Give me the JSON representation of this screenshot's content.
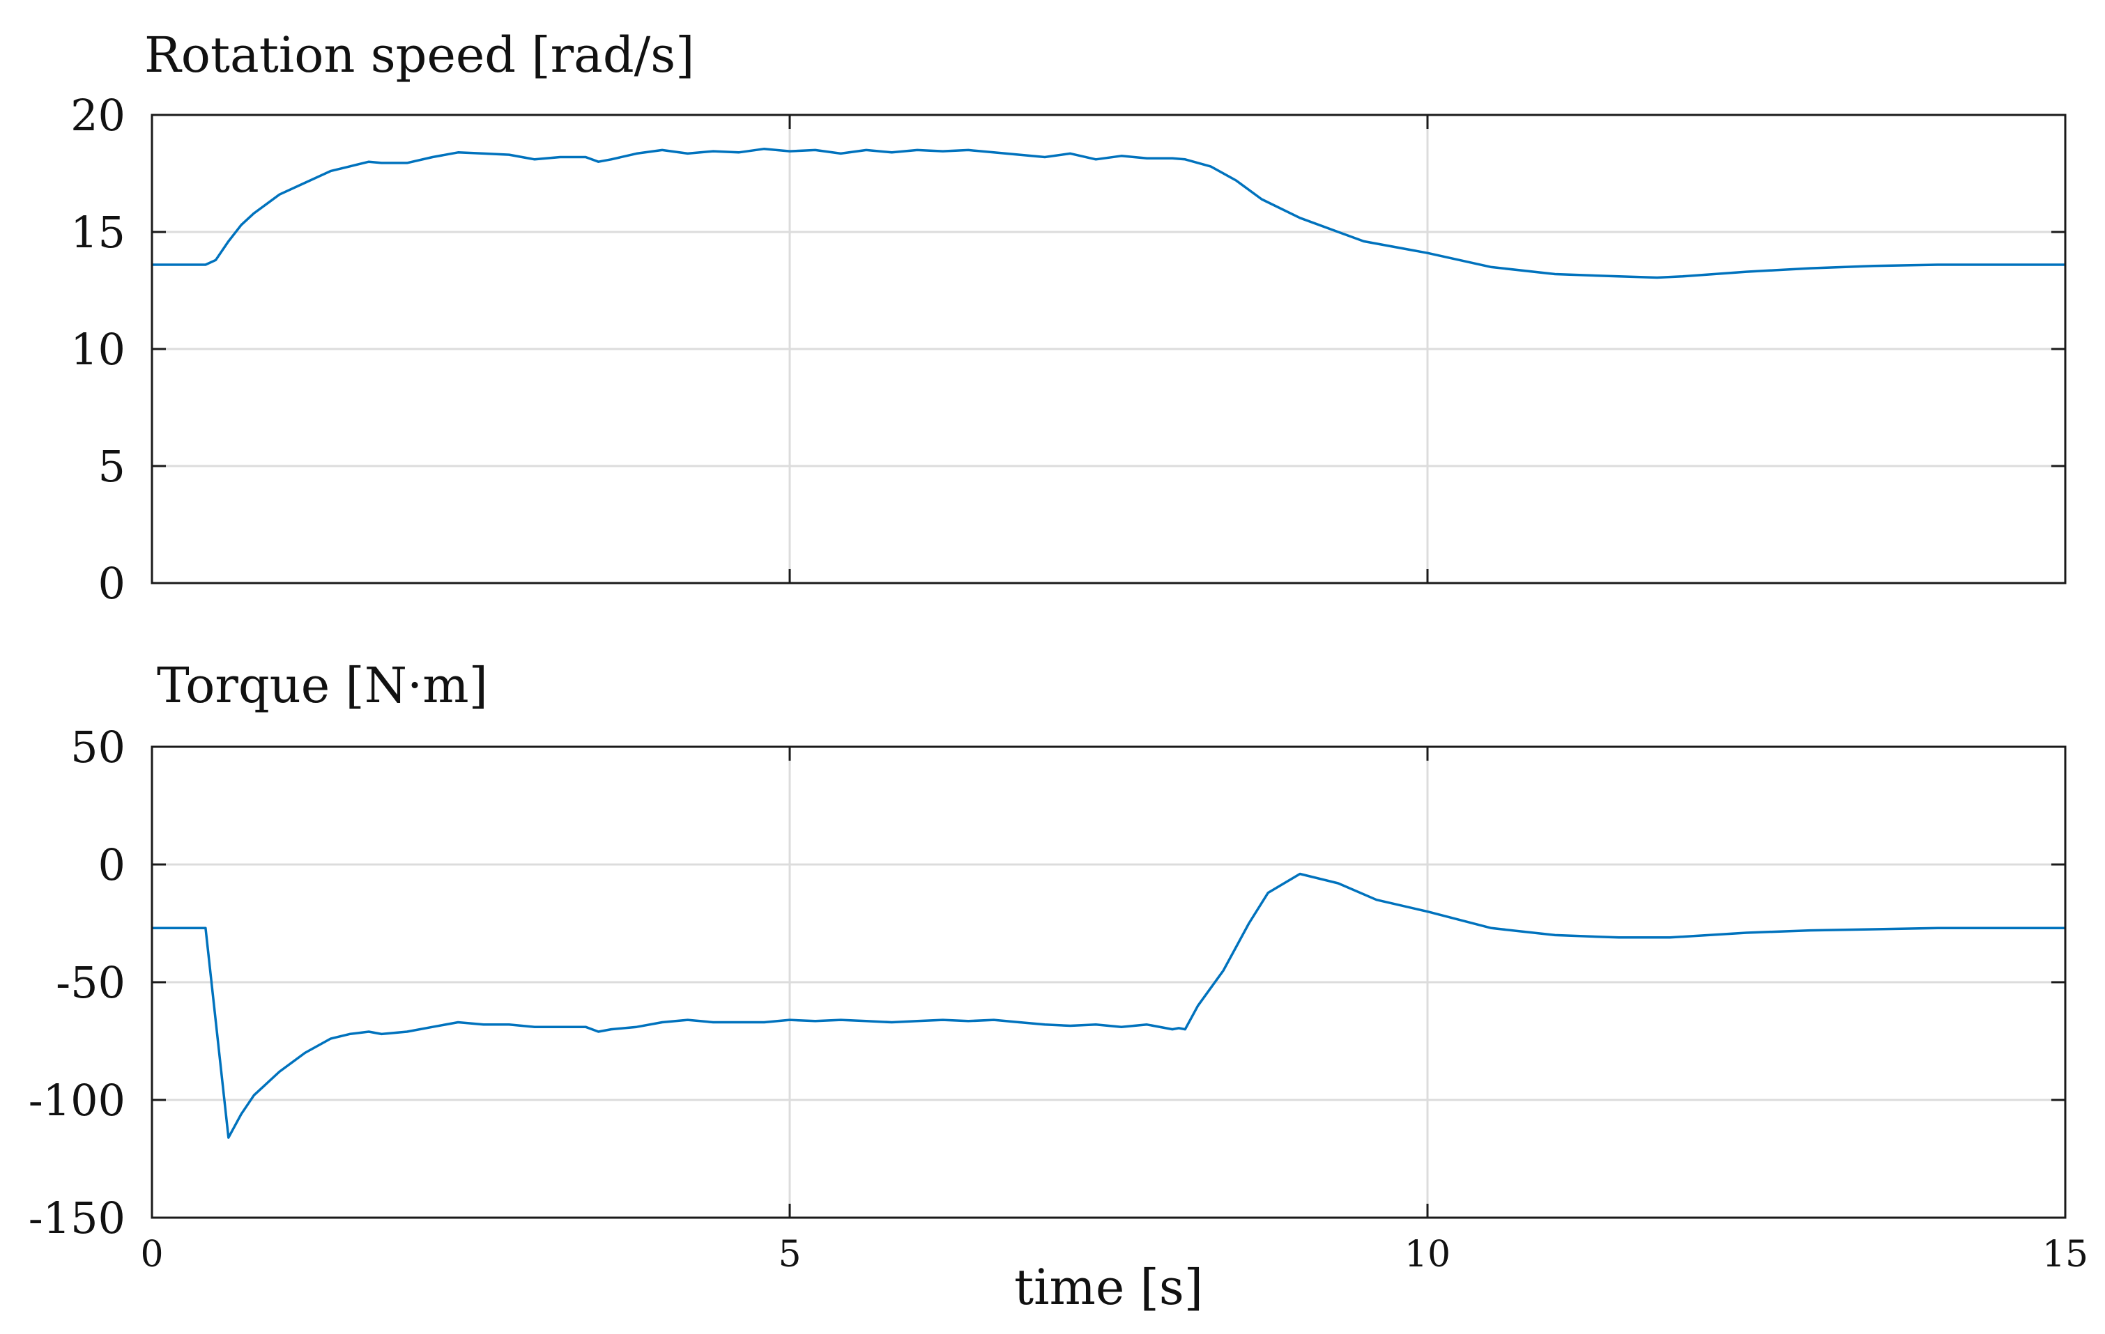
{
  "chart_data": [
    {
      "type": "line",
      "title": "Rotation speed [rad/s]",
      "xlabel": "",
      "ylabel": "",
      "xlim": [
        0,
        15
      ],
      "ylim": [
        0,
        20
      ],
      "xticks": [
        0,
        5,
        10,
        15
      ],
      "yticks": [
        0,
        5,
        10,
        15,
        20
      ],
      "x_tick_labels": [
        "",
        "",
        "",
        ""
      ],
      "y_tick_labels": [
        "0",
        "5",
        "10",
        "15",
        "20"
      ],
      "grid": true,
      "line_color": "#0072BD",
      "series": [
        {
          "x": [
            0,
            0.25,
            0.42,
            0.5,
            0.6,
            0.7,
            0.8,
            1.0,
            1.2,
            1.4,
            1.55,
            1.7,
            1.8,
            2.0,
            2.2,
            2.4,
            2.6,
            2.8,
            3.0,
            3.2,
            3.4,
            3.5,
            3.6,
            3.8,
            4.0,
            4.2,
            4.4,
            4.6,
            4.8,
            5.0,
            5.2,
            5.4,
            5.6,
            5.8,
            6.0,
            6.2,
            6.4,
            6.6,
            6.8,
            7.0,
            7.2,
            7.4,
            7.6,
            7.8,
            8.0,
            8.1,
            8.3,
            8.5,
            8.7,
            9.0,
            9.3,
            9.5,
            10.0,
            10.5,
            11.0,
            11.5,
            11.8,
            12.0,
            12.5,
            13.0,
            13.5,
            14.0,
            14.5,
            15.0
          ],
          "y": [
            13.6,
            13.6,
            13.6,
            13.8,
            14.6,
            15.3,
            15.8,
            16.6,
            17.1,
            17.6,
            17.8,
            18.0,
            17.95,
            17.95,
            18.2,
            18.4,
            18.35,
            18.3,
            18.1,
            18.2,
            18.2,
            18.0,
            18.1,
            18.35,
            18.5,
            18.35,
            18.45,
            18.4,
            18.55,
            18.45,
            18.5,
            18.35,
            18.5,
            18.4,
            18.5,
            18.45,
            18.5,
            18.4,
            18.3,
            18.2,
            18.35,
            18.1,
            18.25,
            18.15,
            18.15,
            18.1,
            17.8,
            17.2,
            16.4,
            15.6,
            15.0,
            14.6,
            14.1,
            13.5,
            13.2,
            13.1,
            13.05,
            13.1,
            13.3,
            13.45,
            13.55,
            13.6,
            13.6,
            13.6
          ]
        }
      ]
    },
    {
      "type": "line",
      "title": "Torque [N·m]",
      "xlabel": "time [s]",
      "ylabel": "",
      "xlim": [
        0,
        15
      ],
      "ylim": [
        -150,
        50
      ],
      "xticks": [
        0,
        5,
        10,
        15
      ],
      "yticks": [
        -150,
        -100,
        -50,
        0,
        50
      ],
      "x_tick_labels": [
        "0",
        "5",
        "10",
        "15"
      ],
      "y_tick_labels": [
        "-150",
        "-100",
        "-50",
        "0",
        "50"
      ],
      "grid": true,
      "line_color": "#0072BD",
      "series": [
        {
          "x": [
            0,
            0.25,
            0.42,
            0.6,
            0.7,
            0.8,
            1.0,
            1.2,
            1.4,
            1.55,
            1.7,
            1.8,
            2.0,
            2.2,
            2.4,
            2.6,
            2.8,
            3.0,
            3.2,
            3.4,
            3.5,
            3.6,
            3.8,
            4.0,
            4.2,
            4.4,
            4.6,
            4.8,
            5.0,
            5.2,
            5.4,
            5.6,
            5.8,
            6.0,
            6.2,
            6.4,
            6.6,
            6.8,
            7.0,
            7.2,
            7.4,
            7.6,
            7.8,
            8.0,
            8.05,
            8.1,
            8.2,
            8.4,
            8.6,
            8.75,
            9.0,
            9.3,
            9.6,
            10.0,
            10.5,
            11.0,
            11.5,
            11.9,
            12.5,
            13.0,
            13.5,
            14.0,
            14.5,
            15.0
          ],
          "y": [
            -27,
            -27,
            -27,
            -116,
            -106,
            -98,
            -88,
            -80,
            -74,
            -72,
            -71,
            -72,
            -71,
            -69,
            -67,
            -68,
            -68,
            -69,
            -69,
            -69,
            -71,
            -70,
            -69,
            -67,
            -66,
            -67,
            -67,
            -67,
            -66,
            -66.5,
            -66,
            -66.5,
            -67,
            -66.5,
            -66,
            -66.5,
            -66,
            -67,
            -68,
            -68.5,
            -68,
            -69,
            -68,
            -70,
            -69.5,
            -70,
            -60,
            -45,
            -25,
            -12,
            -4,
            -8,
            -15,
            -20,
            -27,
            -30,
            -31,
            -31,
            -29,
            -28,
            -27.5,
            -27,
            -27,
            -27
          ]
        }
      ]
    }
  ]
}
